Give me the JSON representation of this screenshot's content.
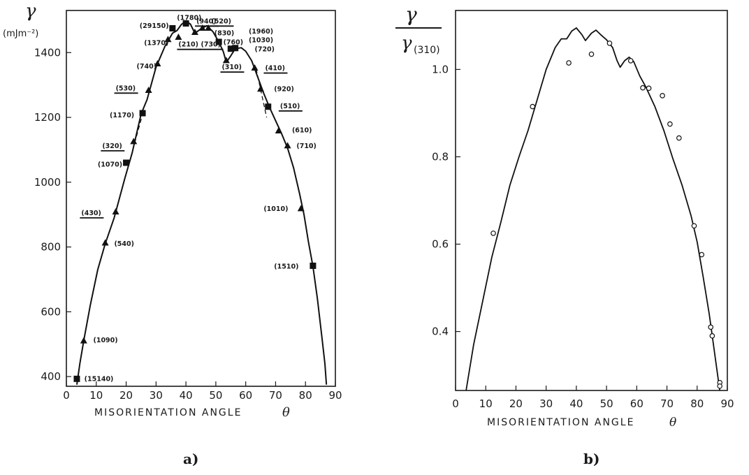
{
  "figure": {
    "caption_a": "a)",
    "caption_b": "b)"
  },
  "chart_data": [
    {
      "type": "scatter",
      "panel": "a",
      "ylabel_symbol": "γ",
      "ylabel_unit": "(mJm⁻²)",
      "xlabel": "MISORIENTATION ANGLE",
      "xlabel_symbol": "θ",
      "xlim": [
        0,
        90
      ],
      "ylim": [
        370,
        1530
      ],
      "xticks": [
        "0",
        "10",
        "20",
        "30",
        "40",
        "50",
        "60",
        "70",
        "80",
        "90"
      ],
      "yticks": [
        "400",
        "600",
        "800",
        "1000",
        "1200",
        "1400"
      ],
      "grid": false,
      "curve": [
        [
          3.5,
          375
        ],
        [
          4.5,
          440
        ],
        [
          5.8,
          510
        ],
        [
          8,
          620
        ],
        [
          10.5,
          730
        ],
        [
          13,
          810
        ],
        [
          16,
          890
        ],
        [
          19.5,
          1010
        ],
        [
          22,
          1090
        ],
        [
          25,
          1210
        ],
        [
          27,
          1255
        ],
        [
          30,
          1355
        ],
        [
          33,
          1420
        ],
        [
          35.5,
          1460
        ],
        [
          37,
          1468
        ],
        [
          38.5,
          1487
        ],
        [
          40,
          1497
        ],
        [
          41.5,
          1488
        ],
        [
          43,
          1460
        ],
        [
          45,
          1473
        ],
        [
          47,
          1483
        ],
        [
          49,
          1465
        ],
        [
          51,
          1433
        ],
        [
          52.5,
          1403
        ],
        [
          53.5,
          1370
        ],
        [
          55,
          1390
        ],
        [
          56.5,
          1412
        ],
        [
          58.5,
          1415
        ],
        [
          60,
          1404
        ],
        [
          62,
          1375
        ],
        [
          64,
          1325
        ],
        [
          66,
          1275
        ],
        [
          68,
          1230
        ],
        [
          70,
          1190
        ],
        [
          72,
          1150
        ],
        [
          74,
          1105
        ],
        [
          76,
          1045
        ],
        [
          78,
          965
        ],
        [
          79.5,
          900
        ],
        [
          81,
          815
        ],
        [
          82.5,
          740
        ],
        [
          84,
          640
        ],
        [
          85.5,
          520
        ],
        [
          86.5,
          440
        ],
        [
          87,
          375
        ]
      ],
      "dashed_segments": [
        [
          [
            18.5,
            975
          ],
          [
            25.5,
            1210
          ]
        ],
        [
          [
            63.5,
            1350
          ],
          [
            67,
            1200
          ]
        ]
      ],
      "markers": [
        {
          "shape": "square",
          "x": 3.5,
          "y": 393
        },
        {
          "shape": "triangle",
          "x": 5.8,
          "y": 510
        },
        {
          "shape": "triangle",
          "x": 13,
          "y": 812
        },
        {
          "shape": "triangle",
          "x": 16.5,
          "y": 908
        },
        {
          "shape": "square",
          "x": 20,
          "y": 1060
        },
        {
          "shape": "triangle",
          "x": 22.5,
          "y": 1125
        },
        {
          "shape": "square",
          "x": 25.5,
          "y": 1213
        },
        {
          "shape": "triangle",
          "x": 27.5,
          "y": 1283
        },
        {
          "shape": "triangle",
          "x": 30.5,
          "y": 1365
        },
        {
          "shape": "triangle",
          "x": 34,
          "y": 1440
        },
        {
          "shape": "square",
          "x": 35.5,
          "y": 1475
        },
        {
          "shape": "triangle",
          "x": 37.5,
          "y": 1447
        },
        {
          "shape": "square",
          "x": 40,
          "y": 1490
        },
        {
          "shape": "triangle",
          "x": 43,
          "y": 1462
        },
        {
          "shape": "triangle",
          "x": 45.5,
          "y": 1475
        },
        {
          "shape": "triangle",
          "x": 47.5,
          "y": 1475
        },
        {
          "shape": "square",
          "x": 51,
          "y": 1433
        },
        {
          "shape": "triangle",
          "x": 53.5,
          "y": 1375
        },
        {
          "shape": "square",
          "x": 55,
          "y": 1412
        },
        {
          "shape": "square",
          "x": 56.5,
          "y": 1414
        },
        {
          "shape": "triangle",
          "x": 63,
          "y": 1352
        },
        {
          "shape": "triangle",
          "x": 65,
          "y": 1287
        },
        {
          "shape": "square",
          "x": 67.5,
          "y": 1233
        },
        {
          "shape": "triangle",
          "x": 71,
          "y": 1158
        },
        {
          "shape": "triangle",
          "x": 74,
          "y": 1112
        },
        {
          "shape": "triangle",
          "x": 78.5,
          "y": 918
        },
        {
          "shape": "square",
          "x": 82.5,
          "y": 742
        }
      ],
      "annotations": [
        {
          "text": "(15140)",
          "x": 6,
          "y": 393,
          "underline": false
        },
        {
          "text": "(1090)",
          "x": 9,
          "y": 512,
          "underline": false
        },
        {
          "text": "(540)",
          "x": 16,
          "y": 810,
          "underline": false
        },
        {
          "text": "(430)",
          "x": 5,
          "y": 905,
          "underline": true
        },
        {
          "text": "(1070)",
          "x": 10.5,
          "y": 1055,
          "underline": false
        },
        {
          "text": "(320)",
          "x": 12,
          "y": 1112,
          "underline": true
        },
        {
          "text": "(1170)",
          "x": 14.5,
          "y": 1207,
          "underline": false
        },
        {
          "text": "(530)",
          "x": 16.5,
          "y": 1290,
          "underline": true
        },
        {
          "text": "(740)",
          "x": 23.5,
          "y": 1357,
          "underline": false
        },
        {
          "text": "(1370)",
          "x": 26,
          "y": 1430,
          "underline": false
        },
        {
          "text": "(29150)",
          "x": 24.5,
          "y": 1483,
          "underline": false
        },
        {
          "text": "(1780)",
          "x": 37,
          "y": 1507,
          "underline": false
        },
        {
          "text": "(210)",
          "x": 37.5,
          "y": 1425,
          "underline": true
        },
        {
          "text": "(730)",
          "x": 45,
          "y": 1425,
          "underline": true
        },
        {
          "text": "(940)",
          "x": 43.5,
          "y": 1497,
          "underline": true
        },
        {
          "text": "(520)",
          "x": 48.5,
          "y": 1497,
          "underline": true
        },
        {
          "text": "(830)",
          "x": 49.5,
          "y": 1460,
          "underline": false
        },
        {
          "text": "(760)",
          "x": 52.5,
          "y": 1432,
          "underline": false
        },
        {
          "text": "(1960)",
          "x": 61,
          "y": 1465,
          "underline": false
        },
        {
          "text": "(1030)",
          "x": 61,
          "y": 1438,
          "underline": false
        },
        {
          "text": "(720)",
          "x": 63,
          "y": 1410,
          "underline": false
        },
        {
          "text": "(310)",
          "x": 52,
          "y": 1355,
          "underline": true
        },
        {
          "text": "(410)",
          "x": 66.5,
          "y": 1352,
          "underline": true
        },
        {
          "text": "(920)",
          "x": 69.5,
          "y": 1287,
          "underline": false
        },
        {
          "text": "(510)",
          "x": 71.5,
          "y": 1235,
          "underline": true
        },
        {
          "text": "(610)",
          "x": 75.5,
          "y": 1160,
          "underline": false
        },
        {
          "text": "(710)",
          "x": 77,
          "y": 1112,
          "underline": false
        },
        {
          "text": "(1010)",
          "x": 66,
          "y": 918,
          "underline": false
        },
        {
          "text": "(1510)",
          "x": 69.5,
          "y": 740,
          "underline": false
        }
      ]
    },
    {
      "type": "scatter",
      "panel": "b",
      "ylabel_numerator": "γ",
      "ylabel_denominator": "γ",
      "ylabel_subscript": "(310)",
      "xlabel": "MISORIENTATION ANGLE",
      "xlabel_symbol": "θ",
      "xlim": [
        0,
        90
      ],
      "ylim": [
        0.265,
        1.135
      ],
      "xticks": [
        "0",
        "10",
        "20",
        "30",
        "40",
        "50",
        "60",
        "70",
        "80",
        "90"
      ],
      "yticks": [
        "0.4",
        "0.6",
        "0.8",
        "1.0"
      ],
      "grid": false,
      "points": [
        [
          12.5,
          0.625
        ],
        [
          25.5,
          0.915
        ],
        [
          37.5,
          1.015
        ],
        [
          45,
          1.035
        ],
        [
          51,
          1.06
        ],
        [
          58,
          1.02
        ],
        [
          62,
          0.958
        ],
        [
          64,
          0.957
        ],
        [
          68.5,
          0.94
        ],
        [
          71,
          0.875
        ],
        [
          74,
          0.843
        ],
        [
          79,
          0.642
        ],
        [
          81.5,
          0.576
        ],
        [
          84.5,
          0.41
        ],
        [
          85,
          0.39
        ],
        [
          87.5,
          0.283
        ],
        [
          87.5,
          0.275
        ]
      ],
      "curve": [
        [
          3.5,
          0.265
        ],
        [
          6,
          0.37
        ],
        [
          9,
          0.47
        ],
        [
          12,
          0.57
        ],
        [
          15,
          0.65
        ],
        [
          18,
          0.735
        ],
        [
          21,
          0.8
        ],
        [
          24,
          0.86
        ],
        [
          27,
          0.93
        ],
        [
          30,
          1.0
        ],
        [
          33,
          1.05
        ],
        [
          35,
          1.07
        ],
        [
          36.8,
          1.07
        ],
        [
          38.5,
          1.088
        ],
        [
          40,
          1.095
        ],
        [
          41.8,
          1.08
        ],
        [
          43,
          1.066
        ],
        [
          45,
          1.083
        ],
        [
          46.5,
          1.09
        ],
        [
          48,
          1.08
        ],
        [
          50,
          1.068
        ],
        [
          52,
          1.05
        ],
        [
          53.5,
          1.02
        ],
        [
          54.5,
          1.005
        ],
        [
          56,
          1.02
        ],
        [
          57.5,
          1.028
        ],
        [
          59,
          1.018
        ],
        [
          61,
          0.985
        ],
        [
          63,
          0.96
        ],
        [
          66,
          0.915
        ],
        [
          69,
          0.86
        ],
        [
          72,
          0.795
        ],
        [
          75,
          0.735
        ],
        [
          78,
          0.665
        ],
        [
          80,
          0.605
        ],
        [
          82,
          0.525
        ],
        [
          84,
          0.44
        ],
        [
          86,
          0.34
        ],
        [
          87,
          0.29
        ],
        [
          87.5,
          0.265
        ]
      ]
    }
  ]
}
